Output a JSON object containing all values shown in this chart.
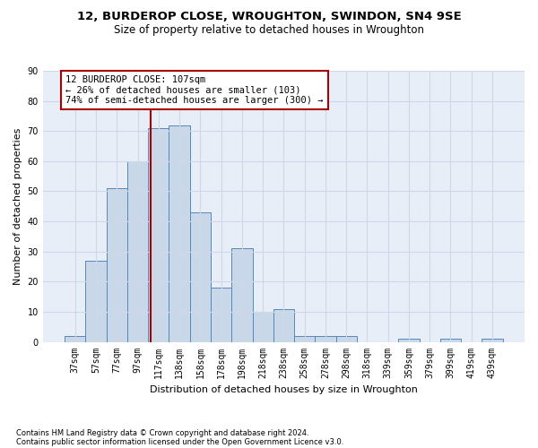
{
  "title_line1": "12, BURDEROP CLOSE, WROUGHTON, SWINDON, SN4 9SE",
  "title_line2": "Size of property relative to detached houses in Wroughton",
  "xlabel": "Distribution of detached houses by size in Wroughton",
  "ylabel": "Number of detached properties",
  "footnote1": "Contains HM Land Registry data © Crown copyright and database right 2024.",
  "footnote2": "Contains public sector information licensed under the Open Government Licence v3.0.",
  "categories": [
    "37sqm",
    "57sqm",
    "77sqm",
    "97sqm",
    "117sqm",
    "138sqm",
    "158sqm",
    "178sqm",
    "198sqm",
    "218sqm",
    "238sqm",
    "258sqm",
    "278sqm",
    "298sqm",
    "318sqm",
    "339sqm",
    "359sqm",
    "379sqm",
    "399sqm",
    "419sqm",
    "439sqm"
  ],
  "values": [
    2,
    27,
    51,
    60,
    71,
    72,
    43,
    18,
    31,
    10,
    11,
    2,
    2,
    2,
    0,
    0,
    1,
    0,
    1,
    0,
    1
  ],
  "bar_color": "#c8d8e8",
  "bar_edge_color": "#5588bb",
  "bar_width": 1.0,
  "ylim": [
    0,
    90
  ],
  "yticks": [
    0,
    10,
    20,
    30,
    40,
    50,
    60,
    70,
    80,
    90
  ],
  "property_line_x": 3.62,
  "annotation_text_line1": "12 BURDEROP CLOSE: 107sqm",
  "annotation_text_line2": "← 26% of detached houses are smaller (103)",
  "annotation_text_line3": "74% of semi-detached houses are larger (300) →",
  "vline_color": "#aa0000",
  "background_color": "#ffffff",
  "plot_bg_color": "#e8eef8",
  "grid_color": "#d0d8e8",
  "annotation_box_color": "#ffffff",
  "annotation_box_edge": "#aa0000",
  "title_fontsize": 9.5,
  "subtitle_fontsize": 8.5,
  "ylabel_fontsize": 8,
  "xlabel_fontsize": 8,
  "tick_fontsize": 7,
  "annot_fontsize": 7.5,
  "footnote_fontsize": 6
}
